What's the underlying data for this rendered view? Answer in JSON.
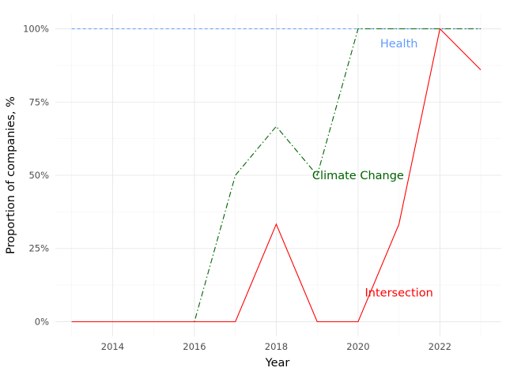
{
  "chart_data": {
    "type": "line",
    "xlabel": "Year",
    "ylabel": "Proportion of companies, %",
    "xlim": [
      2012.6,
      2023.5
    ],
    "ylim": [
      -0.05,
      1.05
    ],
    "x_ticks": [
      2014,
      2016,
      2018,
      2020,
      2022
    ],
    "x_tick_labels": [
      "2014",
      "2016",
      "2018",
      "2020",
      "2022"
    ],
    "y_ticks": [
      0,
      0.25,
      0.5,
      0.75,
      1.0
    ],
    "y_tick_labels": [
      "0%",
      "25%",
      "50%",
      "75%",
      "100%"
    ],
    "grid": true,
    "legend": "none",
    "x": [
      2013,
      2014,
      2015,
      2016,
      2017,
      2018,
      2019,
      2020,
      2021,
      2022,
      2023
    ],
    "series": [
      {
        "name": "Health",
        "color": "#619cff",
        "line_style": "dashed",
        "values": [
          1,
          1,
          1,
          1,
          1,
          1,
          1,
          1,
          1,
          1,
          1
        ],
        "label_x": 2021,
        "label_y": 0.95
      },
      {
        "name": "Climate Change",
        "color": "#006400",
        "line_style": "dashdot",
        "values": [
          0,
          0,
          0,
          0,
          0.5,
          0.667,
          0.5,
          1,
          1,
          1,
          1
        ],
        "label_x": 2020,
        "label_y": 0.5
      },
      {
        "name": "Intersection",
        "color": "#ff0000",
        "line_style": "solid",
        "values": [
          0,
          0,
          0,
          0,
          0,
          0.333,
          0,
          0,
          0.333,
          1,
          0.86
        ],
        "label_x": 2021,
        "label_y": 0.1
      }
    ]
  }
}
